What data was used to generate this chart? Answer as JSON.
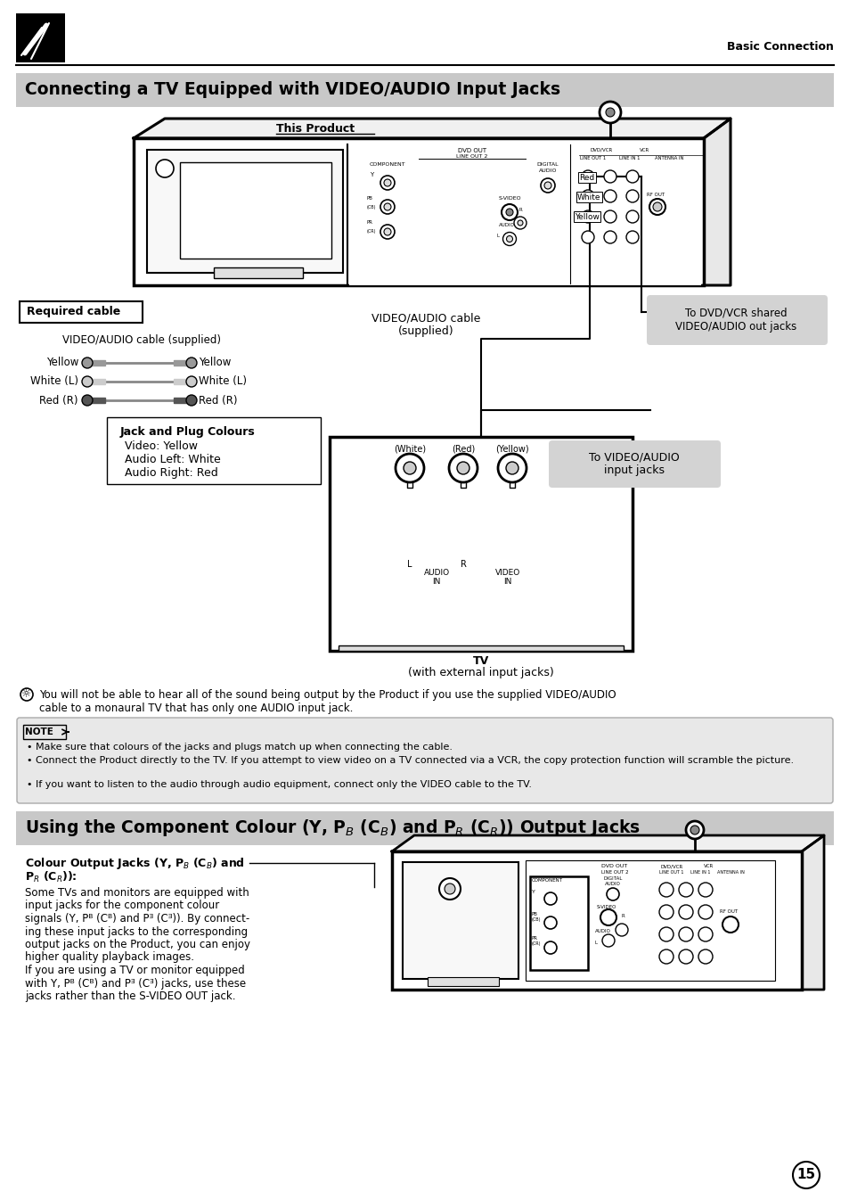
{
  "page_bg": "#ffffff",
  "header_text": "Basic Connection",
  "section1_bg": "#c8c8c8",
  "section1_title": "Connecting a TV Equipped with VIDEO/AUDIO Input Jacks",
  "section2_bg": "#c8c8c8",
  "section2_title_p1": "Using the Component Colour (Y, P",
  "section2_title_p2": " (C",
  "section2_title_p3": ") and P",
  "section2_title_p4": " (C",
  "section2_title_p5": ")) Output Jacks",
  "this_product_label": "This Product",
  "required_cable_label": "Required cable",
  "cable_label": "VIDEO/AUDIO cable (supplied)",
  "jack_plug_title": "Jack and Plug Colours",
  "jack_video": "Video: Yellow",
  "jack_audio_left": "Audio Left: White",
  "jack_audio_right": "Audio Right: Red",
  "cable_supplied_label": "VIDEO/AUDIO cable\n(supplied)",
  "dvd_vcr_label": "To DVD/VCR shared\nVIDEO/AUDIO out jacks",
  "video_audio_input_label": "To VIDEO/AUDIO\ninput jacks",
  "tv_bold": "TV",
  "tv_rest": " (with external input jacks)",
  "tip_text": "You will not be able to hear all of the sound being output by the Product if you use the supplied VIDEO/AUDIO\ncable to a monaural TV that has only one AUDIO input jack.",
  "note_bullets": [
    "Make sure that colours of the jacks and plugs match up when connecting the cable.",
    "Connect the Product directly to the TV. If you attempt to view video on a TV connected via a VCR, the copy protection function will scramble the picture.",
    "If you want to listen to the audio through audio equipment, connect only the VIDEO cable to the TV."
  ],
  "colour_output_body_lines": [
    "Some TVs and monitors are equipped with",
    "input jacks for the component colour",
    "signals (Y, Pᴮ (Cᴮ) and Pᴲ (Cᴲ)). By connect-",
    "ing these input jacks to the corresponding",
    "output jacks on the Product, you can enjoy",
    "higher quality playback images.",
    "If you are using a TV or monitor equipped",
    "with Y, Pᴮ (Cᴮ) and Pᴲ (Cᴲ) jacks, use these",
    "jacks rather than the S-VIDEO OUT jack."
  ],
  "page_number": "15",
  "note_bg": "#e8e8e8",
  "callout_bg": "#d3d3d3",
  "section1_title_fontsize": 13.5,
  "section2_title_fontsize": 13.5,
  "body_fontsize": 8.5
}
